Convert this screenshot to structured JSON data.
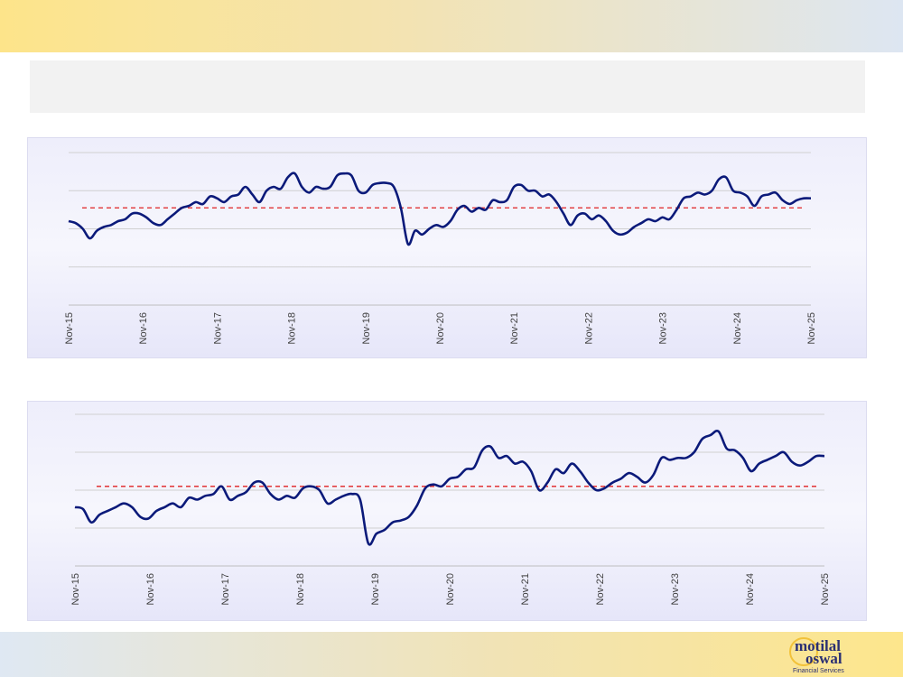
{
  "header": {
    "title": ""
  },
  "logo": {
    "line1": "motilal",
    "line2": "oswal",
    "tagline": "Financial Services"
  },
  "colors": {
    "series": "#0b1a7a",
    "average": "#e02020",
    "grid": "#d0d0d0"
  },
  "chart_data": [
    {
      "type": "line",
      "title": "",
      "xlabel": "",
      "ylabel": "",
      "grid": true,
      "x_tick_labels": [
        "Nov-15",
        "Nov-16",
        "Nov-17",
        "Nov-18",
        "Nov-19",
        "Nov-20",
        "Nov-21",
        "Nov-22",
        "Nov-23",
        "Nov-24",
        "Nov-25"
      ],
      "ylim": [
        0,
        4
      ],
      "series": [
        {
          "kind": "line",
          "values": [
            2.2,
            2.15,
            2.0,
            1.75,
            1.95,
            2.05,
            2.1,
            2.2,
            2.25,
            2.4,
            2.4,
            2.3,
            2.15,
            2.1,
            2.25,
            2.4,
            2.55,
            2.6,
            2.7,
            2.65,
            2.85,
            2.8,
            2.7,
            2.85,
            2.9,
            3.1,
            2.9,
            2.7,
            3.0,
            3.1,
            3.05,
            3.35,
            3.45,
            3.1,
            2.95,
            3.1,
            3.05,
            3.1,
            3.4,
            3.45,
            3.4,
            3.0,
            2.95,
            3.15,
            3.2,
            3.2,
            3.1,
            2.55,
            1.6,
            1.95,
            1.85,
            2.0,
            2.1,
            2.05,
            2.2,
            2.5,
            2.6,
            2.45,
            2.55,
            2.5,
            2.75,
            2.7,
            2.75,
            3.1,
            3.15,
            3.0,
            3.0,
            2.85,
            2.9,
            2.7,
            2.4,
            2.1,
            2.35,
            2.4,
            2.25,
            2.35,
            2.2,
            1.95,
            1.85,
            1.9,
            2.05,
            2.15,
            2.25,
            2.2,
            2.3,
            2.25,
            2.5,
            2.8,
            2.85,
            2.95,
            2.9,
            3.0,
            3.3,
            3.35,
            3.0,
            2.95,
            2.85,
            2.6,
            2.85,
            2.9,
            2.95,
            2.75,
            2.65,
            2.75,
            2.8,
            2.8
          ]
        },
        {
          "kind": "average",
          "value": 2.55
        }
      ]
    },
    {
      "type": "line",
      "title": "",
      "xlabel": "",
      "ylabel": "",
      "grid": true,
      "x_tick_labels": [
        "Nov-15",
        "Nov-16",
        "Nov-17",
        "Nov-18",
        "Nov-19",
        "Nov-20",
        "Nov-21",
        "Nov-22",
        "Nov-23",
        "Nov-24",
        "Nov-25"
      ],
      "ylim": [
        0,
        4
      ],
      "series": [
        {
          "kind": "line",
          "values": [
            1.55,
            1.5,
            1.15,
            1.35,
            1.45,
            1.55,
            1.65,
            1.55,
            1.3,
            1.25,
            1.45,
            1.55,
            1.65,
            1.55,
            1.8,
            1.75,
            1.85,
            1.9,
            2.1,
            1.75,
            1.85,
            1.95,
            2.2,
            2.2,
            1.9,
            1.75,
            1.85,
            1.8,
            2.05,
            2.1,
            2.0,
            1.65,
            1.75,
            1.85,
            1.9,
            1.75,
            0.6,
            0.85,
            0.95,
            1.15,
            1.2,
            1.3,
            1.6,
            2.05,
            2.15,
            2.1,
            2.3,
            2.35,
            2.55,
            2.6,
            3.05,
            3.15,
            2.85,
            2.9,
            2.7,
            2.75,
            2.5,
            2.0,
            2.2,
            2.55,
            2.45,
            2.7,
            2.5,
            2.2,
            2.0,
            2.05,
            2.2,
            2.3,
            2.45,
            2.35,
            2.2,
            2.4,
            2.85,
            2.8,
            2.85,
            2.85,
            3.0,
            3.35,
            3.45,
            3.55,
            3.1,
            3.05,
            2.85,
            2.5,
            2.7,
            2.8,
            2.9,
            3.0,
            2.75,
            2.65,
            2.75,
            2.9,
            2.9
          ]
        },
        {
          "kind": "average",
          "value": 2.1
        }
      ]
    }
  ]
}
